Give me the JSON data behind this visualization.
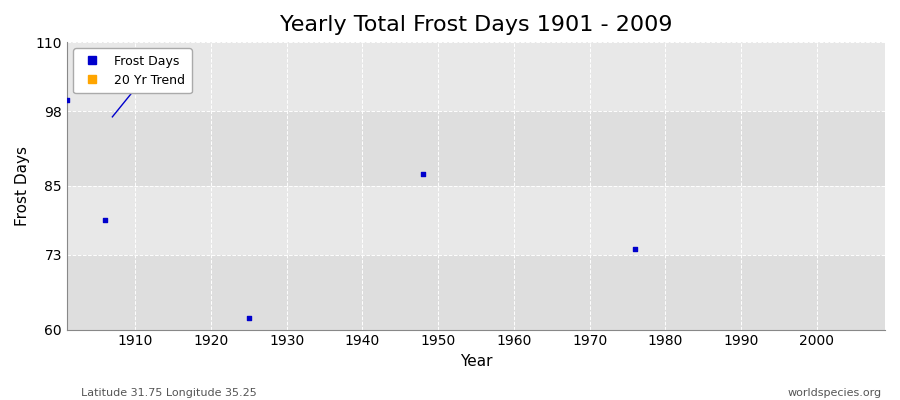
{
  "title": "Yearly Total Frost Days 1901 - 2009",
  "xlabel": "Year",
  "ylabel": "Frost Days",
  "xlim": [
    1901,
    2009
  ],
  "ylim": [
    60,
    110
  ],
  "yticks": [
    60,
    73,
    85,
    98,
    110
  ],
  "xticks": [
    1910,
    1920,
    1930,
    1940,
    1950,
    1960,
    1970,
    1980,
    1990,
    2000
  ],
  "background_color": "#ffffff",
  "plot_bg_color": "#e8e8e8",
  "band_color_light": "#f0f0f0",
  "band_color_dark": "#e0e0e0",
  "frost_days_color": "#0000cc",
  "trend_color": "#0000cc",
  "frost_days": [
    [
      1901,
      100.0
    ],
    [
      1906,
      79.0
    ],
    [
      1925,
      62.0
    ],
    [
      1948,
      87.0
    ],
    [
      1976,
      74.0
    ]
  ],
  "trend_line": [
    [
      1907,
      97.0
    ],
    [
      1911,
      103.5
    ]
  ],
  "subtitle_left": "Latitude 31.75 Longitude 35.25",
  "subtitle_right": "worldspecies.org",
  "title_fontsize": 16,
  "label_fontsize": 11,
  "tick_fontsize": 10,
  "grid_color": "#ffffff",
  "grid_linestyle": "--",
  "grid_linewidth": 0.7
}
